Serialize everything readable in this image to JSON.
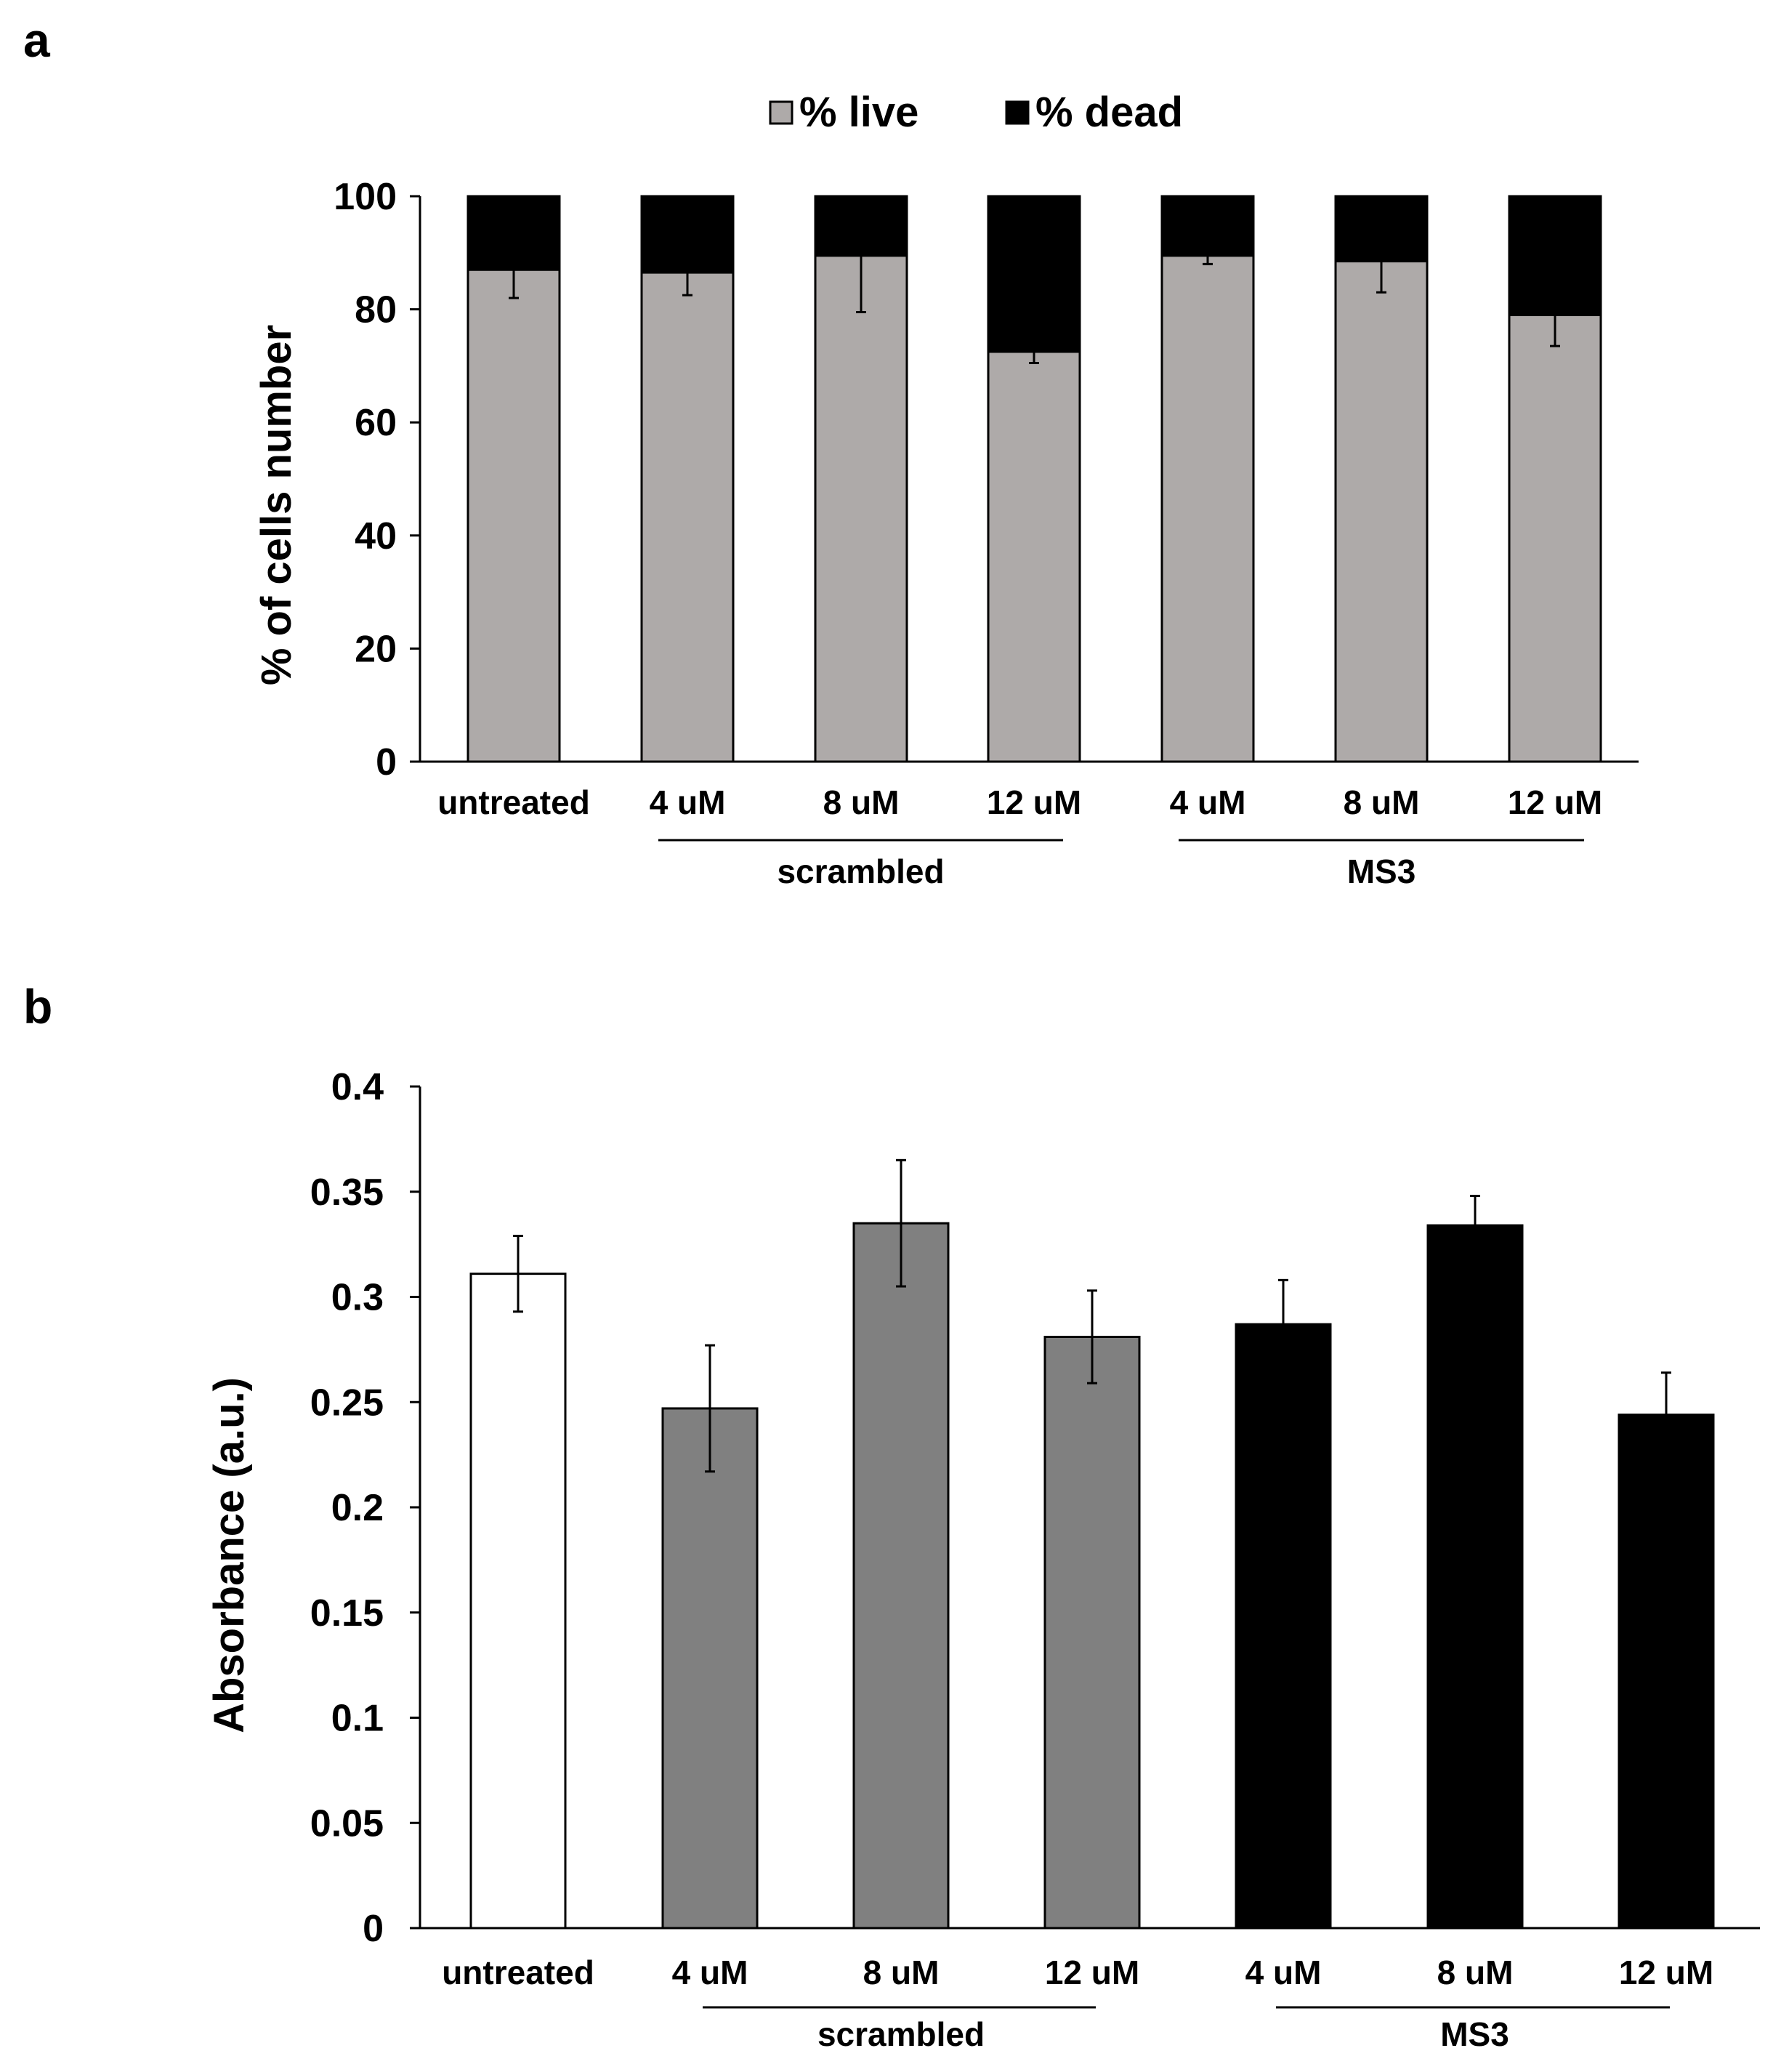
{
  "chart_data": [
    {
      "panel": "a",
      "type": "bar",
      "stacked": true,
      "ylabel": "% of cells number",
      "ylim": [
        0,
        100
      ],
      "yticks": [
        "0",
        "20",
        "40",
        "60",
        "80",
        "100"
      ],
      "categories": [
        "untreated",
        "4 uM",
        "8 uM",
        "12 uM",
        "4 uM",
        "8 uM",
        "12 uM"
      ],
      "groups": [
        {
          "label": "scrambled",
          "from": 1,
          "to": 3
        },
        {
          "label": "MS3",
          "from": 4,
          "to": 6
        }
      ],
      "legend": [
        "% live",
        "% dead"
      ],
      "series": [
        {
          "name": "% live",
          "color": "#aeaaa9",
          "values": [
            87,
            86.5,
            89.5,
            72.5,
            89.5,
            88.5,
            79
          ],
          "err": [
            5,
            4,
            10,
            2,
            1.5,
            5.5,
            5.5
          ]
        },
        {
          "name": "% dead",
          "color": "#000000",
          "values": [
            13,
            13.5,
            10.5,
            27.5,
            10.5,
            11.5,
            21
          ]
        }
      ]
    },
    {
      "panel": "b",
      "type": "bar",
      "ylabel": "Absorbance (a.u.)",
      "ylim": [
        0,
        0.4
      ],
      "yticks": [
        "0",
        "0.05",
        "0.1",
        "0.15",
        "0.2",
        "0.25",
        "0.3",
        "0.35",
        "0.4"
      ],
      "categories": [
        "untreated",
        "4 uM",
        "8 uM",
        "12 uM",
        "4 uM",
        "8 uM",
        "12 uM"
      ],
      "groups": [
        {
          "label": "scrambled",
          "from": 1,
          "to": 3
        },
        {
          "label": "MS3",
          "from": 4,
          "to": 6
        }
      ],
      "values": [
        0.311,
        0.247,
        0.335,
        0.281,
        0.287,
        0.334,
        0.244
      ],
      "err": [
        0.018,
        0.03,
        0.03,
        0.022,
        0.021,
        0.014,
        0.02
      ],
      "colors": [
        "#ffffff",
        "#808080",
        "#808080",
        "#808080",
        "#000000",
        "#000000",
        "#000000"
      ]
    }
  ]
}
